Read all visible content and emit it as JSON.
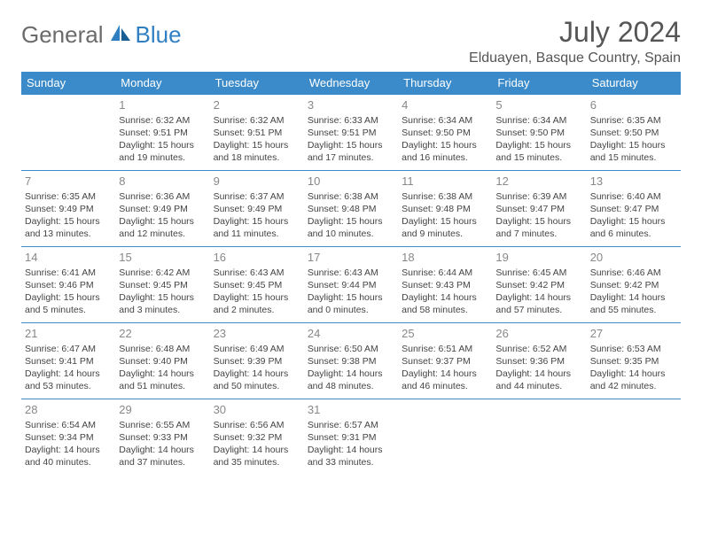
{
  "brand": {
    "part1": "General",
    "part2": "Blue"
  },
  "title": "July 2024",
  "location": "Elduayen, Basque Country, Spain",
  "colors": {
    "header_bg": "#3b8bca",
    "header_text": "#ffffff",
    "border": "#3b8bca",
    "empty_bg": "#efefef",
    "daynum": "#888888",
    "body_text": "#444444",
    "title_text": "#555555",
    "logo_gray": "#6b6b6b",
    "logo_blue": "#2f7fc2"
  },
  "day_headers": [
    "Sunday",
    "Monday",
    "Tuesday",
    "Wednesday",
    "Thursday",
    "Friday",
    "Saturday"
  ],
  "weeks": [
    [
      null,
      {
        "n": "1",
        "sr": "6:32 AM",
        "ss": "9:51 PM",
        "dl": "15 hours and 19 minutes."
      },
      {
        "n": "2",
        "sr": "6:32 AM",
        "ss": "9:51 PM",
        "dl": "15 hours and 18 minutes."
      },
      {
        "n": "3",
        "sr": "6:33 AM",
        "ss": "9:51 PM",
        "dl": "15 hours and 17 minutes."
      },
      {
        "n": "4",
        "sr": "6:34 AM",
        "ss": "9:50 PM",
        "dl": "15 hours and 16 minutes."
      },
      {
        "n": "5",
        "sr": "6:34 AM",
        "ss": "9:50 PM",
        "dl": "15 hours and 15 minutes."
      },
      {
        "n": "6",
        "sr": "6:35 AM",
        "ss": "9:50 PM",
        "dl": "15 hours and 15 minutes."
      }
    ],
    [
      {
        "n": "7",
        "sr": "6:35 AM",
        "ss": "9:49 PM",
        "dl": "15 hours and 13 minutes."
      },
      {
        "n": "8",
        "sr": "6:36 AM",
        "ss": "9:49 PM",
        "dl": "15 hours and 12 minutes."
      },
      {
        "n": "9",
        "sr": "6:37 AM",
        "ss": "9:49 PM",
        "dl": "15 hours and 11 minutes."
      },
      {
        "n": "10",
        "sr": "6:38 AM",
        "ss": "9:48 PM",
        "dl": "15 hours and 10 minutes."
      },
      {
        "n": "11",
        "sr": "6:38 AM",
        "ss": "9:48 PM",
        "dl": "15 hours and 9 minutes."
      },
      {
        "n": "12",
        "sr": "6:39 AM",
        "ss": "9:47 PM",
        "dl": "15 hours and 7 minutes."
      },
      {
        "n": "13",
        "sr": "6:40 AM",
        "ss": "9:47 PM",
        "dl": "15 hours and 6 minutes."
      }
    ],
    [
      {
        "n": "14",
        "sr": "6:41 AM",
        "ss": "9:46 PM",
        "dl": "15 hours and 5 minutes."
      },
      {
        "n": "15",
        "sr": "6:42 AM",
        "ss": "9:45 PM",
        "dl": "15 hours and 3 minutes."
      },
      {
        "n": "16",
        "sr": "6:43 AM",
        "ss": "9:45 PM",
        "dl": "15 hours and 2 minutes."
      },
      {
        "n": "17",
        "sr": "6:43 AM",
        "ss": "9:44 PM",
        "dl": "15 hours and 0 minutes."
      },
      {
        "n": "18",
        "sr": "6:44 AM",
        "ss": "9:43 PM",
        "dl": "14 hours and 58 minutes."
      },
      {
        "n": "19",
        "sr": "6:45 AM",
        "ss": "9:42 PM",
        "dl": "14 hours and 57 minutes."
      },
      {
        "n": "20",
        "sr": "6:46 AM",
        "ss": "9:42 PM",
        "dl": "14 hours and 55 minutes."
      }
    ],
    [
      {
        "n": "21",
        "sr": "6:47 AM",
        "ss": "9:41 PM",
        "dl": "14 hours and 53 minutes."
      },
      {
        "n": "22",
        "sr": "6:48 AM",
        "ss": "9:40 PM",
        "dl": "14 hours and 51 minutes."
      },
      {
        "n": "23",
        "sr": "6:49 AM",
        "ss": "9:39 PM",
        "dl": "14 hours and 50 minutes."
      },
      {
        "n": "24",
        "sr": "6:50 AM",
        "ss": "9:38 PM",
        "dl": "14 hours and 48 minutes."
      },
      {
        "n": "25",
        "sr": "6:51 AM",
        "ss": "9:37 PM",
        "dl": "14 hours and 46 minutes."
      },
      {
        "n": "26",
        "sr": "6:52 AM",
        "ss": "9:36 PM",
        "dl": "14 hours and 44 minutes."
      },
      {
        "n": "27",
        "sr": "6:53 AM",
        "ss": "9:35 PM",
        "dl": "14 hours and 42 minutes."
      }
    ],
    [
      {
        "n": "28",
        "sr": "6:54 AM",
        "ss": "9:34 PM",
        "dl": "14 hours and 40 minutes."
      },
      {
        "n": "29",
        "sr": "6:55 AM",
        "ss": "9:33 PM",
        "dl": "14 hours and 37 minutes."
      },
      {
        "n": "30",
        "sr": "6:56 AM",
        "ss": "9:32 PM",
        "dl": "14 hours and 35 minutes."
      },
      {
        "n": "31",
        "sr": "6:57 AM",
        "ss": "9:31 PM",
        "dl": "14 hours and 33 minutes."
      },
      null,
      null,
      null
    ]
  ],
  "labels": {
    "sunrise": "Sunrise:",
    "sunset": "Sunset:",
    "daylight": "Daylight:"
  }
}
